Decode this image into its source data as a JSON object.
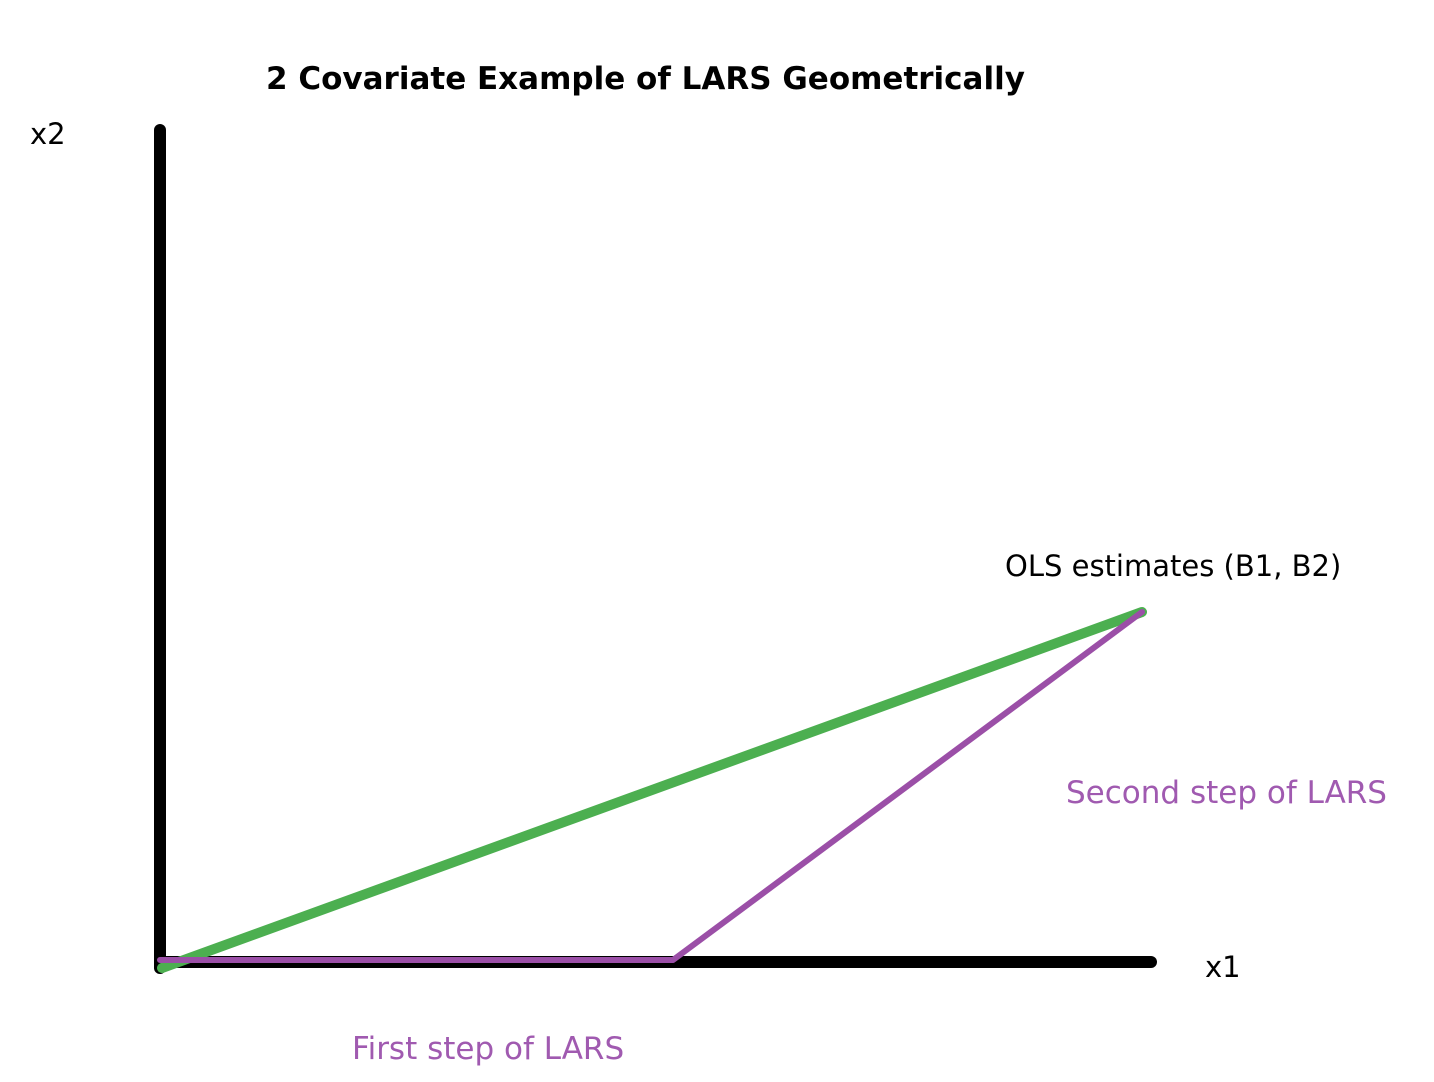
{
  "title": "2 Covariate Example of LARS Geometrically",
  "axes": {
    "x_label": "x1",
    "y_label": "x2"
  },
  "annotations": {
    "ols_point": "OLS estimates (B1, B2)",
    "first_step": "First step of LARS",
    "second_step": "Second step of LARS"
  },
  "colors": {
    "axes": "#000000",
    "ols_path": "#4caf50",
    "lars_path": "#9b4fa7",
    "lars_text": "#a05ab0",
    "text": "#000000"
  }
}
